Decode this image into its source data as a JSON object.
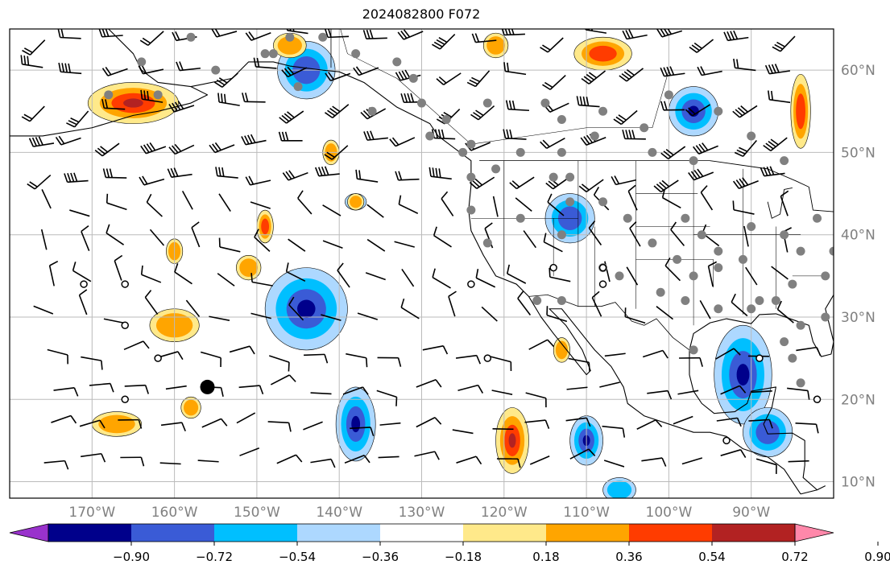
{
  "title": "2024082800 F072",
  "map": {
    "lon_range": [
      -180,
      -80
    ],
    "lat_range": [
      8,
      65
    ],
    "lon_labels": [
      {
        "lon": -170,
        "text": "170°W"
      },
      {
        "lon": -160,
        "text": "160°W"
      },
      {
        "lon": -150,
        "text": "150°W"
      },
      {
        "lon": -140,
        "text": "140°W"
      },
      {
        "lon": -130,
        "text": "130°W"
      },
      {
        "lon": -120,
        "text": "120°W"
      },
      {
        "lon": -110,
        "text": "110°W"
      },
      {
        "lon": -100,
        "text": "100°W"
      },
      {
        "lon": -90,
        "text": "90°W"
      }
    ],
    "lat_labels": [
      {
        "lat": 60,
        "text": "60°N"
      },
      {
        "lat": 50,
        "text": "50°N"
      },
      {
        "lat": 40,
        "text": "40°N"
      },
      {
        "lat": 30,
        "text": "30°N"
      },
      {
        "lat": 20,
        "text": "20°N"
      },
      {
        "lat": 10,
        "text": "10°N"
      }
    ],
    "grid": true,
    "tick_label_color": "#808080",
    "grid_color": "#bbbbbb",
    "coastline_color": "#000000",
    "station_color": "#808080"
  },
  "colorbar": {
    "colors": [
      "#9932cc",
      "#00008b",
      "#3a5bd6",
      "#00bfff",
      "#add8ff",
      "#ffffff",
      "#ffe98a",
      "#ffa500",
      "#ff3c00",
      "#b22222",
      "#ff88aa"
    ],
    "ticks": [
      "−0.90",
      "−0.72",
      "−0.54",
      "−0.36",
      "−0.18",
      "0.18",
      "0.36",
      "0.54",
      "0.72",
      "0.90"
    ],
    "extend": "both"
  },
  "fields": {
    "negative_blobs": [
      {
        "lon": -144,
        "lat": 31,
        "rx": 5,
        "ry": 5,
        "level": 3
      },
      {
        "lon": -138,
        "lat": 17,
        "rx": 2.4,
        "ry": 4.5,
        "level": 3
      },
      {
        "lon": -144,
        "lat": 60,
        "rx": 3.5,
        "ry": 3.5,
        "level": 2
      },
      {
        "lon": -112,
        "lat": 42,
        "rx": 3,
        "ry": 3,
        "level": 2
      },
      {
        "lon": -97,
        "lat": 55,
        "rx": 3,
        "ry": 3,
        "level": 3
      },
      {
        "lon": -91,
        "lat": 23,
        "rx": 3.5,
        "ry": 6,
        "level": 3
      },
      {
        "lon": -88,
        "lat": 16,
        "rx": 3,
        "ry": 3,
        "level": 2
      },
      {
        "lon": -110,
        "lat": 15,
        "rx": 2,
        "ry": 3,
        "level": 3
      },
      {
        "lon": -138,
        "lat": 44,
        "rx": 1.3,
        "ry": 1,
        "level": 1
      },
      {
        "lon": -106,
        "lat": 9,
        "rx": 2,
        "ry": 1.5,
        "level": 1
      }
    ],
    "positive_blobs": [
      {
        "lon": -165,
        "lat": 56,
        "rx": 5.5,
        "ry": 2.5,
        "level": 3
      },
      {
        "lon": -160,
        "lat": 29,
        "rx": 3,
        "ry": 2,
        "level": 1
      },
      {
        "lon": -160,
        "lat": 38,
        "rx": 1,
        "ry": 1.5,
        "level": 1
      },
      {
        "lon": -149,
        "lat": 41,
        "rx": 1,
        "ry": 2,
        "level": 2
      },
      {
        "lon": -151,
        "lat": 36,
        "rx": 1.5,
        "ry": 1.5,
        "level": 1
      },
      {
        "lon": -167,
        "lat": 17,
        "rx": 3,
        "ry": 1.5,
        "level": 1
      },
      {
        "lon": -158,
        "lat": 19,
        "rx": 1.2,
        "ry": 1.3,
        "level": 1
      },
      {
        "lon": -119,
        "lat": 15,
        "rx": 2,
        "ry": 4,
        "level": 3
      },
      {
        "lon": -108,
        "lat": 62,
        "rx": 3.5,
        "ry": 2,
        "level": 2
      },
      {
        "lon": -84,
        "lat": 55,
        "rx": 1.2,
        "ry": 4.5,
        "level": 2
      },
      {
        "lon": -146,
        "lat": 63,
        "rx": 2,
        "ry": 1.5,
        "level": 1
      },
      {
        "lon": -121,
        "lat": 63,
        "rx": 1.5,
        "ry": 1.5,
        "level": 1
      },
      {
        "lon": -113,
        "lat": 26,
        "rx": 1,
        "ry": 1.5,
        "level": 1
      },
      {
        "lon": -141,
        "lat": 50,
        "rx": 1,
        "ry": 1.5,
        "level": 1
      },
      {
        "lon": -138,
        "lat": 44,
        "rx": 1,
        "ry": 1,
        "level": 1
      }
    ]
  },
  "stations": {
    "gray": [
      [
        -158,
        64
      ],
      [
        -146,
        64
      ],
      [
        -142,
        64
      ],
      [
        -148,
        62
      ],
      [
        -155,
        60
      ],
      [
        -164,
        61
      ],
      [
        -145,
        58
      ],
      [
        -131,
        59
      ],
      [
        -127,
        54
      ],
      [
        -122,
        56
      ],
      [
        -115,
        56
      ],
      [
        -113,
        54
      ],
      [
        -109,
        52
      ],
      [
        -103,
        53
      ],
      [
        -118,
        50
      ],
      [
        -113,
        50
      ],
      [
        -112,
        47
      ],
      [
        -108,
        55
      ],
      [
        -100,
        57
      ],
      [
        -94,
        55
      ],
      [
        -102,
        50
      ],
      [
        -97,
        49
      ],
      [
        -90,
        52
      ],
      [
        -86,
        49
      ],
      [
        -121,
        48
      ],
      [
        -124,
        47
      ],
      [
        -124,
        43
      ],
      [
        -122,
        39
      ],
      [
        -118,
        42
      ],
      [
        -113,
        40
      ],
      [
        -112,
        44
      ],
      [
        -108,
        44
      ],
      [
        -105,
        42
      ],
      [
        -102,
        39
      ],
      [
        -98,
        42
      ],
      [
        -96,
        40
      ],
      [
        -94,
        38
      ],
      [
        -90,
        41
      ],
      [
        -86,
        40
      ],
      [
        -84,
        38
      ],
      [
        -91,
        37
      ],
      [
        -94,
        36
      ],
      [
        -97,
        35
      ],
      [
        -98,
        32
      ],
      [
        -94,
        31
      ],
      [
        -90,
        31
      ],
      [
        -87,
        32
      ],
      [
        -85,
        34
      ],
      [
        -81,
        35
      ],
      [
        -80,
        38
      ],
      [
        -101,
        33
      ],
      [
        -106,
        35
      ],
      [
        -108,
        36
      ],
      [
        -113,
        32
      ],
      [
        -116,
        32
      ],
      [
        -124,
        51
      ],
      [
        -168,
        57
      ],
      [
        -162,
        57
      ],
      [
        -149,
        62
      ],
      [
        -138,
        62
      ],
      [
        -133,
        61
      ],
      [
        -136,
        55
      ],
      [
        -130,
        56
      ],
      [
        -129,
        52
      ],
      [
        -125,
        50
      ],
      [
        -114,
        47
      ],
      [
        -99,
        37
      ],
      [
        -82,
        42
      ],
      [
        -86,
        27
      ],
      [
        -84,
        22
      ],
      [
        -85,
        25
      ],
      [
        -89,
        32
      ],
      [
        -97,
        26
      ],
      [
        -84,
        29
      ],
      [
        -81,
        30
      ]
    ],
    "open": [
      [
        -171,
        34
      ],
      [
        -166,
        34
      ],
      [
        -166,
        29
      ],
      [
        -162,
        25
      ],
      [
        -166,
        20
      ],
      [
        -114,
        36
      ],
      [
        -108,
        36
      ],
      [
        -124,
        34
      ],
      [
        -108,
        34
      ],
      [
        -122,
        25
      ],
      [
        -89,
        25
      ],
      [
        -82,
        20
      ],
      [
        -93,
        15
      ]
    ],
    "filled": [
      [
        -156,
        21.5
      ]
    ]
  }
}
